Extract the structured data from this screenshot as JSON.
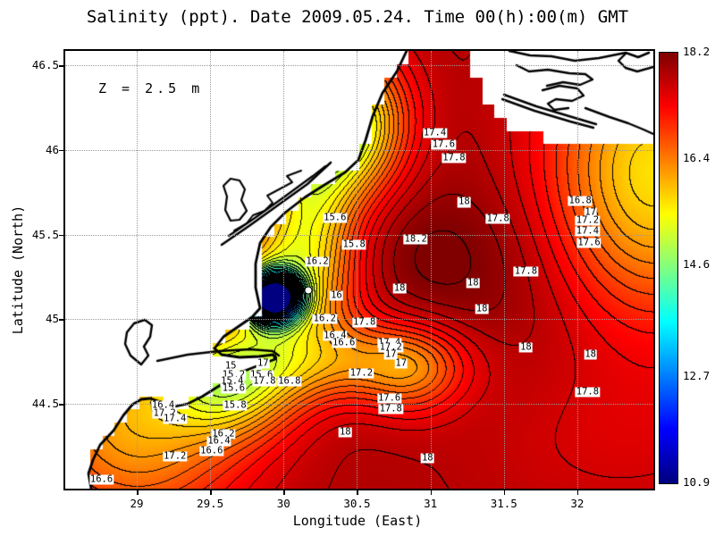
{
  "title": "Salinity (ppt). Date 2009.05.24. Time 00(h):00(m) GMT",
  "annotation": "Z = 2.5 m",
  "axes": {
    "x_label": "Longitude (East)",
    "y_label": "Latitude (North)",
    "x_ticks": [
      29,
      29.5,
      30,
      30.5,
      31,
      31.5,
      32
    ],
    "y_ticks": [
      46.5,
      46,
      45.5,
      45,
      44.5
    ]
  },
  "colorbar": {
    "tick_labels": [
      "18.2",
      "16.4",
      "14.6",
      "12.7",
      "10.9"
    ],
    "min": 10.9,
    "max": 18.2
  },
  "chart_data": {
    "type": "heatmap",
    "variable": "Salinity (ppt)",
    "date": "2009.05.24",
    "time": "00(h):00(m) GMT",
    "depth_annotation": "Z = 2.5 m",
    "xlabel": "Longitude (East)",
    "ylabel": "Latitude (North)",
    "xlim": [
      28.51,
      32.52
    ],
    "ylim": [
      44.0,
      46.58
    ],
    "x_ticks": [
      29,
      29.5,
      30,
      30.5,
      31,
      31.5,
      32
    ],
    "y_ticks": [
      44.5,
      45,
      45.5,
      46,
      46.5
    ],
    "grid": true,
    "colormap": "jet",
    "vmin": 10.9,
    "vmax": 18.2,
    "colorbar_ticks": [
      18.2,
      16.4,
      14.6,
      12.7,
      10.9
    ],
    "contour_interval": 0.2,
    "station_marker": {
      "lon": 30.17,
      "lat": 45.17
    },
    "contour_labels": [
      {
        "v": "17.4",
        "lon": 31.03,
        "lat": 46.1
      },
      {
        "v": "17.6",
        "lon": 31.09,
        "lat": 46.03
      },
      {
        "v": "17.8",
        "lon": 31.16,
        "lat": 45.95
      },
      {
        "v": "18",
        "lon": 31.23,
        "lat": 45.69
      },
      {
        "v": "17.8",
        "lon": 31.46,
        "lat": 45.59
      },
      {
        "v": "16.8",
        "lon": 32.02,
        "lat": 45.7
      },
      {
        "v": "17",
        "lon": 32.09,
        "lat": 45.63
      },
      {
        "v": "17.2",
        "lon": 32.07,
        "lat": 45.58
      },
      {
        "v": "17.4",
        "lon": 32.07,
        "lat": 45.52
      },
      {
        "v": "17.6",
        "lon": 32.08,
        "lat": 45.45
      },
      {
        "v": "17.8",
        "lon": 31.65,
        "lat": 45.28
      },
      {
        "v": "15.6",
        "lon": 30.35,
        "lat": 45.6
      },
      {
        "v": "15.8",
        "lon": 30.48,
        "lat": 45.44
      },
      {
        "v": "16.2",
        "lon": 30.23,
        "lat": 45.34
      },
      {
        "v": "18.2",
        "lon": 30.9,
        "lat": 45.47
      },
      {
        "v": "16",
        "lon": 30.36,
        "lat": 45.14
      },
      {
        "v": "16.2",
        "lon": 30.28,
        "lat": 45.0
      },
      {
        "v": "18",
        "lon": 30.79,
        "lat": 45.18
      },
      {
        "v": "17.8",
        "lon": 30.55,
        "lat": 44.98
      },
      {
        "v": "16.4",
        "lon": 30.35,
        "lat": 44.9
      },
      {
        "v": "16.6",
        "lon": 30.41,
        "lat": 44.86
      },
      {
        "v": "17.4",
        "lon": 30.72,
        "lat": 44.86
      },
      {
        "v": "17.2",
        "lon": 30.73,
        "lat": 44.83
      },
      {
        "v": "17",
        "lon": 30.73,
        "lat": 44.79
      },
      {
        "v": "17",
        "lon": 30.8,
        "lat": 44.74
      },
      {
        "v": "17",
        "lon": 29.86,
        "lat": 44.74
      },
      {
        "v": "15.6",
        "lon": 29.85,
        "lat": 44.67
      },
      {
        "v": "17.8",
        "lon": 29.87,
        "lat": 44.63
      },
      {
        "v": "16.8",
        "lon": 30.04,
        "lat": 44.63
      },
      {
        "v": "17.2",
        "lon": 30.53,
        "lat": 44.68
      },
      {
        "v": "15",
        "lon": 29.64,
        "lat": 44.72
      },
      {
        "v": "15.2",
        "lon": 29.66,
        "lat": 44.67
      },
      {
        "v": "15.4",
        "lon": 29.65,
        "lat": 44.63
      },
      {
        "v": "15.6",
        "lon": 29.66,
        "lat": 44.59
      },
      {
        "v": "15.8",
        "lon": 29.67,
        "lat": 44.49
      },
      {
        "v": "16.4",
        "lon": 29.18,
        "lat": 44.49
      },
      {
        "v": "17.2",
        "lon": 29.19,
        "lat": 44.44
      },
      {
        "v": "17.4",
        "lon": 29.26,
        "lat": 44.41
      },
      {
        "v": "17.2",
        "lon": 29.26,
        "lat": 44.19
      },
      {
        "v": "16.2",
        "lon": 29.59,
        "lat": 44.32
      },
      {
        "v": "16.4",
        "lon": 29.56,
        "lat": 44.28
      },
      {
        "v": "16.6",
        "lon": 29.51,
        "lat": 44.22
      },
      {
        "v": "18",
        "lon": 30.42,
        "lat": 44.33
      },
      {
        "v": "18",
        "lon": 30.98,
        "lat": 44.18
      },
      {
        "v": "16.6",
        "lon": 28.76,
        "lat": 44.05
      },
      {
        "v": "18",
        "lon": 31.65,
        "lat": 44.83
      },
      {
        "v": "18",
        "lon": 32.09,
        "lat": 44.79
      },
      {
        "v": "17.8",
        "lon": 32.07,
        "lat": 44.57
      },
      {
        "v": "18",
        "lon": 31.29,
        "lat": 45.21
      },
      {
        "v": "18",
        "lon": 31.35,
        "lat": 45.06
      },
      {
        "v": "17.6",
        "lon": 30.72,
        "lat": 44.53
      },
      {
        "v": "17.8",
        "lon": 30.73,
        "lat": 44.47
      }
    ]
  }
}
